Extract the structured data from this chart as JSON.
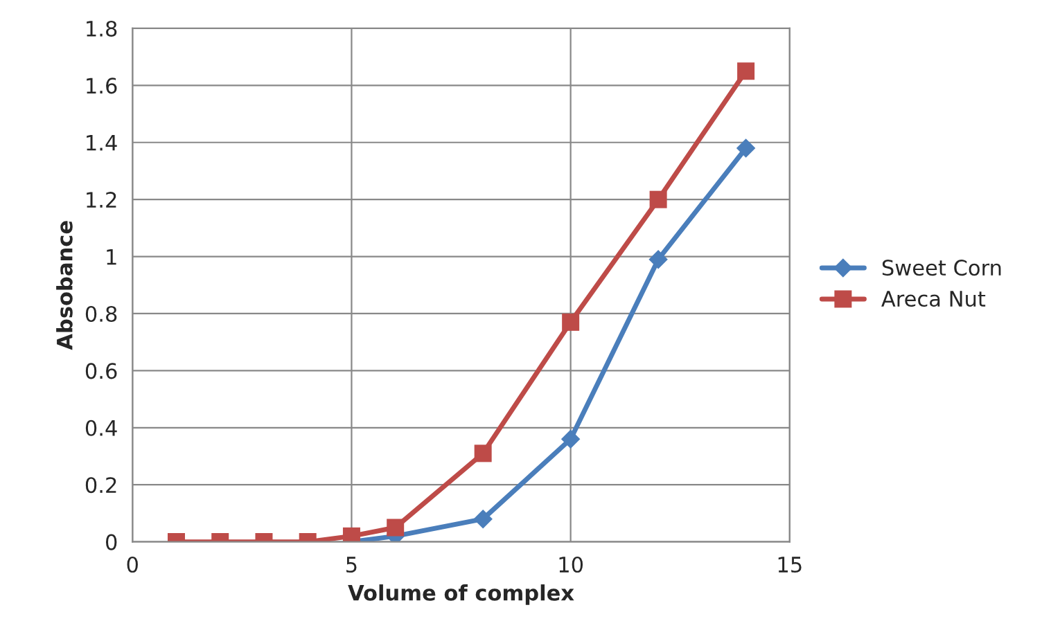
{
  "chart_data": {
    "type": "line",
    "xlabel": "Volume of complex",
    "ylabel": "Absobance",
    "xlim": [
      0,
      15
    ],
    "xticks": [
      0,
      5,
      10,
      15
    ],
    "ylim": [
      0,
      1.8
    ],
    "yticks": [
      0,
      0.2,
      0.4,
      0.6,
      0.8,
      1,
      1.2,
      1.4,
      1.6,
      1.8
    ],
    "grid": true,
    "legend": "right",
    "line_style": "solid",
    "series": [
      {
        "name": "Sweet Corn",
        "color": "#4a7ebb",
        "marker": "diamond",
        "x": [
          5,
          6,
          8,
          10,
          12,
          14
        ],
        "values": [
          0,
          0.02,
          0.08,
          0.36,
          0.99,
          1.38
        ]
      },
      {
        "name": "Areca Nut",
        "color": "#be4b48",
        "marker": "square",
        "x": [
          1,
          2,
          3,
          4,
          5,
          6,
          8,
          10,
          12,
          14
        ],
        "values": [
          0,
          0,
          0,
          0,
          0.02,
          0.05,
          0.31,
          0.77,
          1.2,
          1.65
        ]
      }
    ]
  }
}
